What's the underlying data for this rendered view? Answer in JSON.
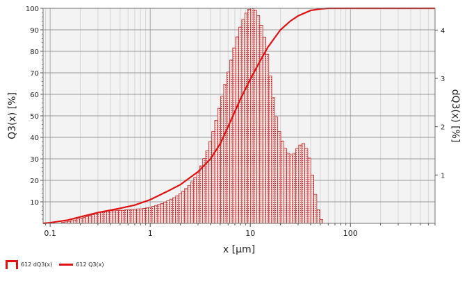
{
  "chart_data": {
    "type": "bar+line",
    "xlabel": "x [µm]",
    "ylabel_left": "Q3(x) [%]",
    "ylabel_right": "dQ3(x) [%]",
    "xscale": "log",
    "xlim": [
      0.085,
      700
    ],
    "ylim_left": [
      0,
      100
    ],
    "ylim_right": [
      0,
      4.45
    ],
    "x_ticks": [
      0.1,
      1,
      10,
      100
    ],
    "x_tick_labels": [
      "0.1",
      "1",
      "10",
      "100"
    ],
    "y_left_ticks": [
      10,
      20,
      30,
      40,
      50,
      60,
      70,
      80,
      90,
      100
    ],
    "y_left_tick_labels": [
      "10",
      "20",
      "30",
      "40",
      "50",
      "60",
      "70",
      "80",
      "90",
      "100"
    ],
    "y_right_ticks": [
      1,
      2,
      3,
      4
    ],
    "y_right_tick_labels": [
      "1",
      "2",
      "3",
      "4"
    ],
    "grid": true,
    "legend_position": "bottom-left",
    "colors": {
      "series": "#e01010",
      "plot_bg": "#f3f3f3",
      "grid": "#c8c8c8"
    },
    "histogram_bins": {
      "x_start": 0.13,
      "log_bin_width": 0.03,
      "values": [
        0.02,
        0.03,
        0.04,
        0.05,
        0.07,
        0.09,
        0.1,
        0.12,
        0.14,
        0.16,
        0.18,
        0.2,
        0.22,
        0.23,
        0.24,
        0.25,
        0.26,
        0.26,
        0.27,
        0.27,
        0.27,
        0.28,
        0.28,
        0.29,
        0.29,
        0.3,
        0.3,
        0.31,
        0.32,
        0.33,
        0.35,
        0.37,
        0.39,
        0.41,
        0.44,
        0.47,
        0.5,
        0.53,
        0.57,
        0.61,
        0.66,
        0.72,
        0.78,
        0.86,
        0.95,
        1.06,
        1.19,
        1.34,
        1.5,
        1.69,
        1.9,
        2.13,
        2.38,
        2.63,
        2.88,
        3.13,
        3.38,
        3.63,
        3.86,
        4.06,
        4.22,
        4.35,
        4.43,
        4.45,
        4.41,
        4.3,
        4.1,
        3.85,
        3.5,
        3.05,
        2.6,
        2.2,
        1.9,
        1.7,
        1.55,
        1.45,
        1.42,
        1.45,
        1.55,
        1.62,
        1.65,
        1.55,
        1.35,
        1.0,
        0.6,
        0.28,
        0.08
      ]
    },
    "series": [
      {
        "name": "612 dQ3(x)",
        "kind": "histogram",
        "axis": "right"
      },
      {
        "name": "612 Q3(x)",
        "kind": "line",
        "axis": "left",
        "x": [
          0.085,
          0.1,
          0.15,
          0.2,
          0.3,
          0.5,
          0.7,
          1,
          1.5,
          2,
          3,
          4,
          5,
          6,
          8,
          10,
          12,
          15,
          20,
          25,
          30,
          40,
          50,
          60,
          70,
          100,
          700
        ],
        "y": [
          0,
          0.3,
          1.5,
          3,
          5,
          7,
          8.5,
          11,
          15,
          18,
          24,
          30,
          37,
          45,
          58,
          67,
          74,
          82,
          90,
          94,
          96.5,
          99,
          99.7,
          100,
          100,
          100,
          100
        ]
      }
    ]
  }
}
